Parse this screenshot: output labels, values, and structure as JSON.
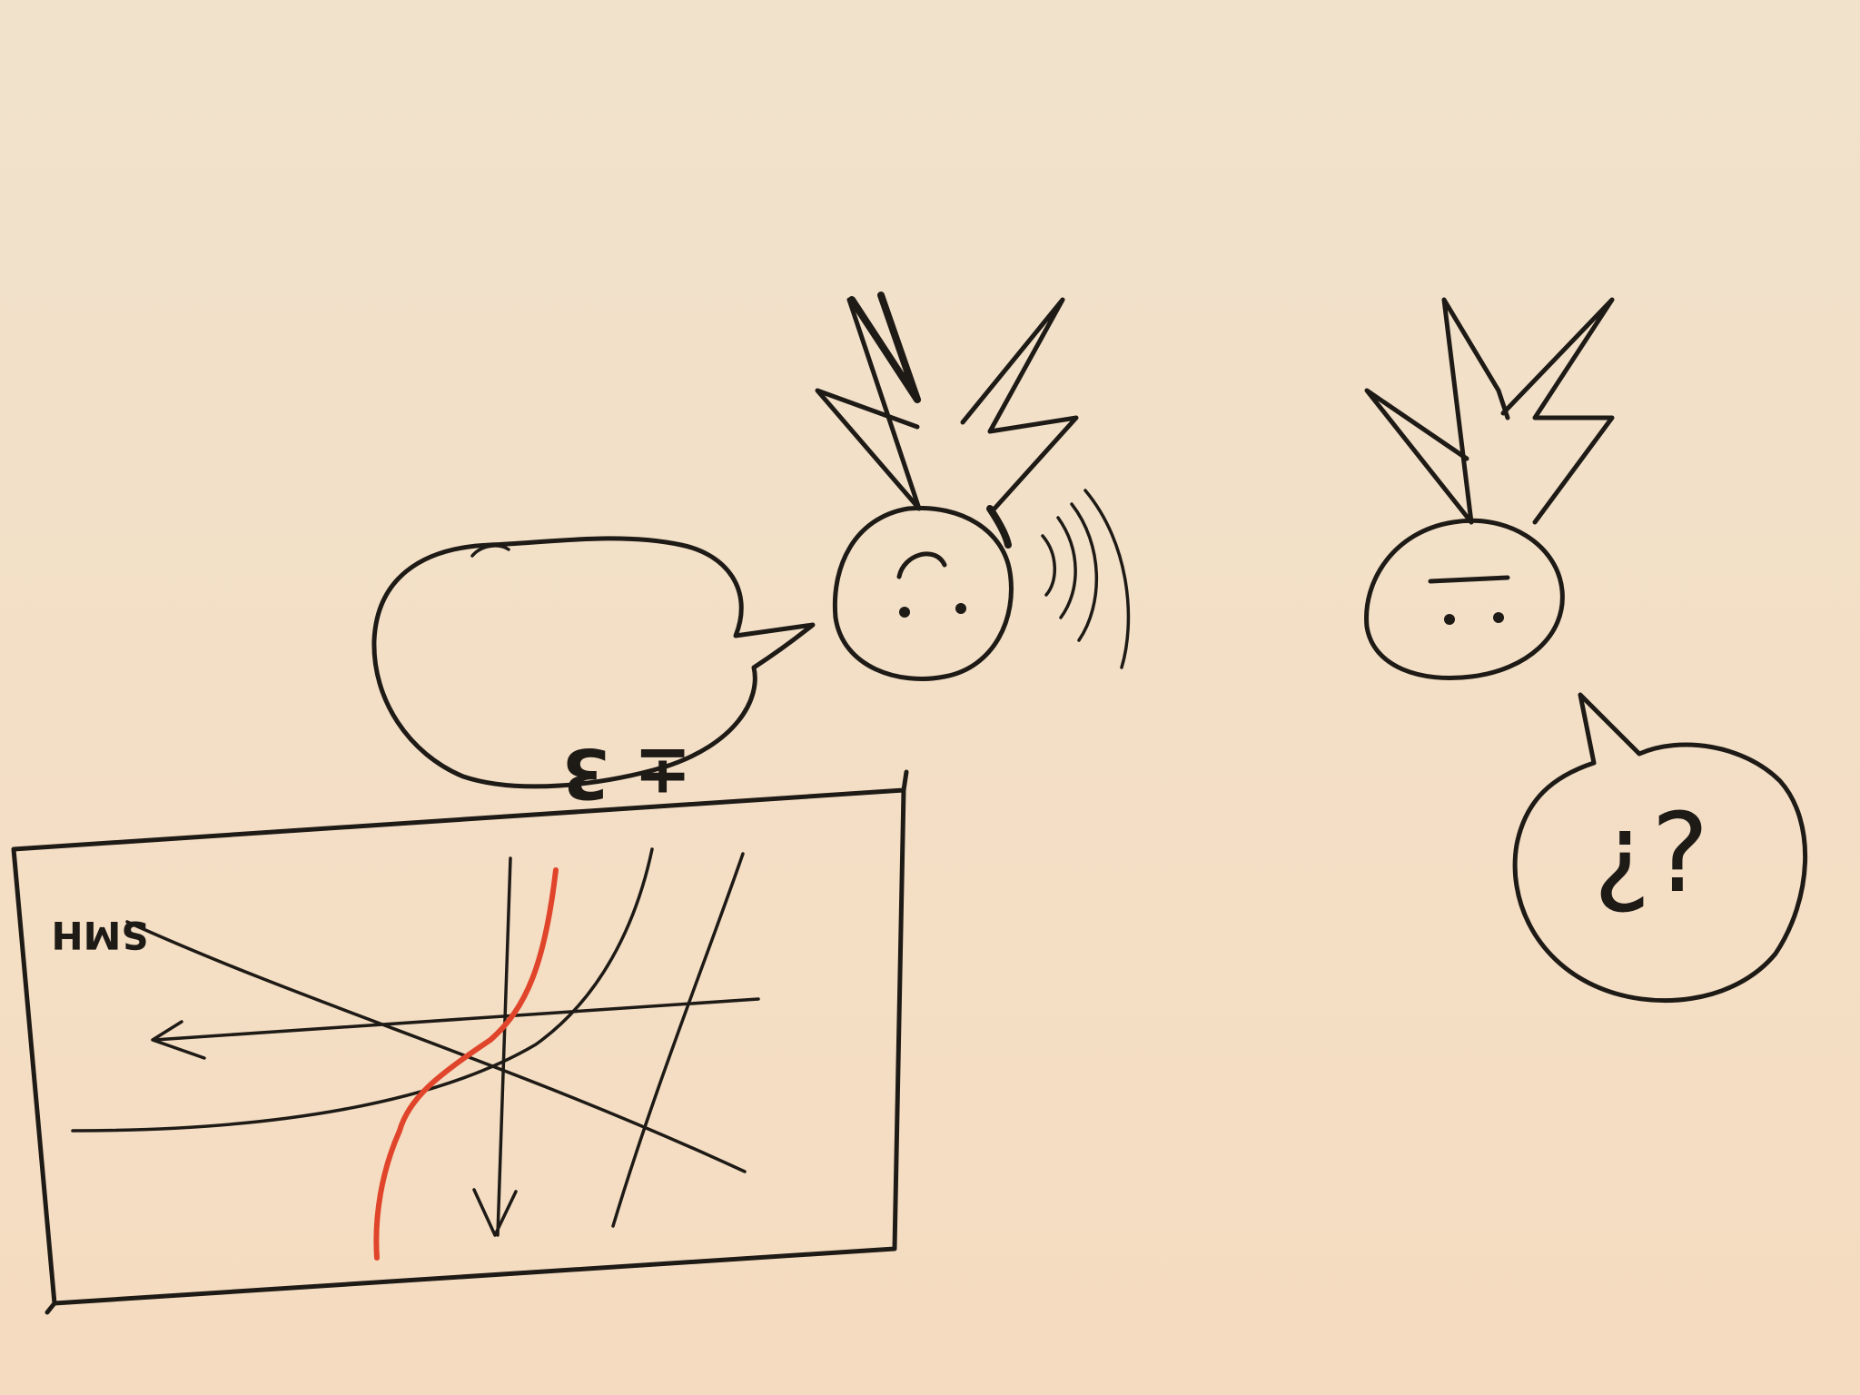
{
  "colors": {
    "paper_top": "#f1e2cc",
    "paper_bottom": "#f5dcc0",
    "ink": "#1e1a16",
    "red_ink": "#e0452b"
  },
  "speech_left": {
    "text": "± 3"
  },
  "speech_right": {
    "text": "¿?"
  },
  "graph": {
    "label": "SMH"
  },
  "icons": {
    "left_person": "spiky-hair-person-icon",
    "right_person": "spiky-hair-person-icon",
    "sound_waves": "sound-waves-icon",
    "arrow_left": "arrow-left-icon",
    "arrow_down": "arrow-down-icon"
  }
}
